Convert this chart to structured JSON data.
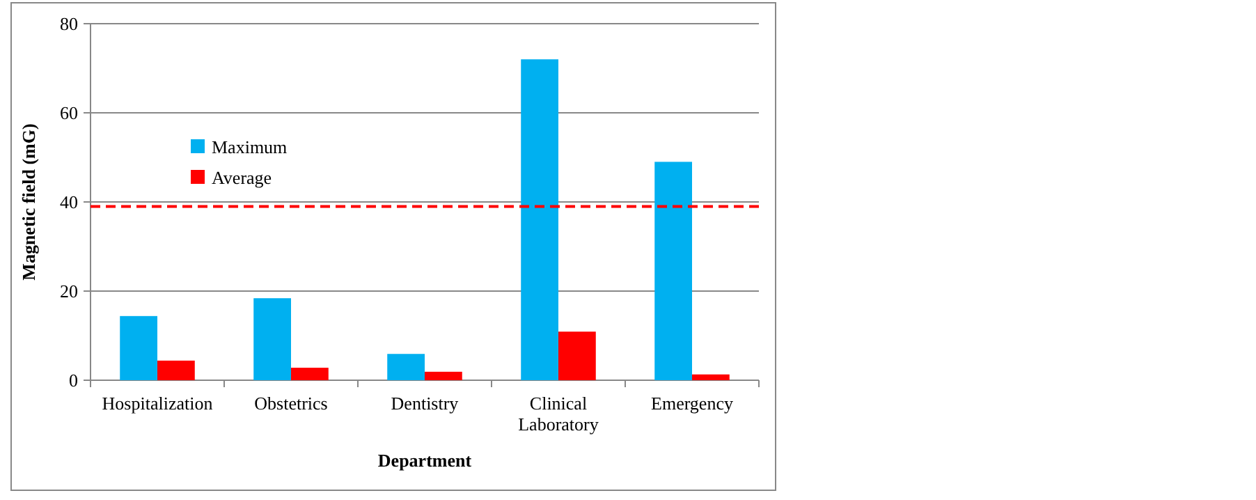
{
  "chart_data": {
    "type": "bar",
    "xlabel": "Department",
    "ylabel": "Magnetic field (mG)",
    "categories": [
      "Hospitalization",
      "Obstetrics",
      "Dentistry",
      "Clinical Laboratory",
      "Emergency"
    ],
    "series": [
      {
        "name": "Maximum",
        "color": "#00b0f0",
        "values": [
          14.4,
          18.4,
          5.9,
          72,
          49
        ]
      },
      {
        "name": "Average",
        "color": "#ff0000",
        "values": [
          4.4,
          2.8,
          1.9,
          10.9,
          1.3
        ]
      }
    ],
    "ylim": [
      0,
      80
    ],
    "yticks": [
      0,
      20,
      40,
      60,
      80
    ],
    "grid": "y",
    "legend": "left",
    "ref_lines": [
      {
        "axis": "y",
        "value": 39,
        "color": "#ff0000",
        "line_style": "dashed"
      }
    ]
  }
}
